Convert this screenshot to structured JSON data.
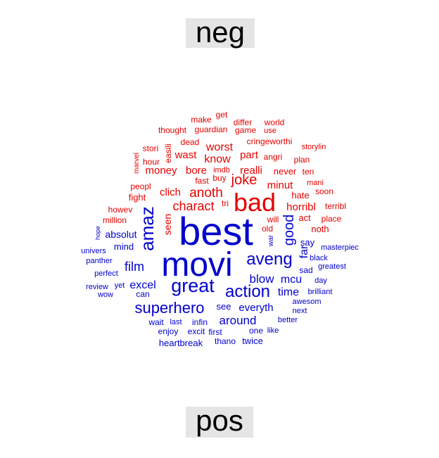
{
  "labels": {
    "neg": "neg",
    "pos": "pos"
  },
  "colors": {
    "neg": "#e60000",
    "pos": "#0000cc"
  },
  "words": [
    {
      "t": "best",
      "c": "pos"
    },
    {
      "t": "movi",
      "c": "pos"
    },
    {
      "t": "bad",
      "c": "neg"
    },
    {
      "t": "great",
      "c": "pos"
    },
    {
      "t": "action",
      "c": "pos"
    },
    {
      "t": "aveng",
      "c": "pos"
    },
    {
      "t": "amaz",
      "c": "pos"
    },
    {
      "t": "superhero",
      "c": "pos"
    },
    {
      "t": "joke",
      "c": "neg"
    },
    {
      "t": "anoth",
      "c": "neg"
    },
    {
      "t": "charact",
      "c": "neg"
    },
    {
      "t": "good",
      "c": "pos"
    },
    {
      "t": "film",
      "c": "pos"
    },
    {
      "t": "blow",
      "c": "pos"
    },
    {
      "t": "mcu",
      "c": "pos"
    },
    {
      "t": "around",
      "c": "pos"
    },
    {
      "t": "time",
      "c": "pos"
    },
    {
      "t": "everyth",
      "c": "pos"
    },
    {
      "t": "excel",
      "c": "pos"
    },
    {
      "t": "horribl",
      "c": "neg"
    },
    {
      "t": "worst",
      "c": "neg"
    },
    {
      "t": "know",
      "c": "neg"
    },
    {
      "t": "realli",
      "c": "neg"
    },
    {
      "t": "wast",
      "c": "neg"
    },
    {
      "t": "part",
      "c": "neg"
    },
    {
      "t": "money",
      "c": "neg"
    },
    {
      "t": "bore",
      "c": "neg"
    },
    {
      "t": "clich",
      "c": "neg"
    },
    {
      "t": "minut",
      "c": "neg"
    },
    {
      "t": "seen",
      "c": "neg"
    },
    {
      "t": "far",
      "c": "pos"
    },
    {
      "t": "absolut",
      "c": "pos"
    },
    {
      "t": "mind",
      "c": "pos"
    },
    {
      "t": "say",
      "c": "pos"
    },
    {
      "t": "see",
      "c": "pos"
    },
    {
      "t": "never",
      "c": "neg"
    },
    {
      "t": "hate",
      "c": "neg"
    },
    {
      "t": "will",
      "c": "neg"
    },
    {
      "t": "act",
      "c": "neg"
    },
    {
      "t": "place",
      "c": "neg"
    },
    {
      "t": "noth",
      "c": "neg"
    },
    {
      "t": "fight",
      "c": "neg"
    },
    {
      "t": "peopl",
      "c": "neg"
    },
    {
      "t": "million",
      "c": "neg"
    },
    {
      "t": "howev",
      "c": "neg"
    },
    {
      "t": "fast",
      "c": "neg"
    },
    {
      "t": "buy",
      "c": "neg"
    },
    {
      "t": "imdb",
      "c": "neg"
    },
    {
      "t": "angri",
      "c": "neg"
    },
    {
      "t": "ten",
      "c": "neg"
    },
    {
      "t": "soon",
      "c": "neg"
    },
    {
      "t": "terribl",
      "c": "neg"
    },
    {
      "t": "old",
      "c": "neg"
    },
    {
      "t": "tri",
      "c": "neg"
    },
    {
      "t": "hour",
      "c": "neg"
    },
    {
      "t": "stori",
      "c": "neg"
    },
    {
      "t": "easili",
      "c": "neg"
    },
    {
      "t": "marvel",
      "c": "neg"
    },
    {
      "t": "dead",
      "c": "neg"
    },
    {
      "t": "thought",
      "c": "neg"
    },
    {
      "t": "guardian",
      "c": "neg"
    },
    {
      "t": "game",
      "c": "neg"
    },
    {
      "t": "use",
      "c": "neg"
    },
    {
      "t": "make",
      "c": "neg"
    },
    {
      "t": "get",
      "c": "neg"
    },
    {
      "t": "differ",
      "c": "neg"
    },
    {
      "t": "world",
      "c": "neg"
    },
    {
      "t": "cringeworthi",
      "c": "neg"
    },
    {
      "t": "storylin",
      "c": "neg"
    },
    {
      "t": "plan",
      "c": "neg"
    },
    {
      "t": "mani",
      "c": "neg"
    },
    {
      "t": "war",
      "c": "pos"
    },
    {
      "t": "hope",
      "c": "pos"
    },
    {
      "t": "univers",
      "c": "pos"
    },
    {
      "t": "panther",
      "c": "pos"
    },
    {
      "t": "perfect",
      "c": "pos"
    },
    {
      "t": "review",
      "c": "pos"
    },
    {
      "t": "yet",
      "c": "pos"
    },
    {
      "t": "wow",
      "c": "pos"
    },
    {
      "t": "can",
      "c": "pos"
    },
    {
      "t": "wait",
      "c": "pos"
    },
    {
      "t": "last",
      "c": "pos"
    },
    {
      "t": "infin",
      "c": "pos"
    },
    {
      "t": "enjoy",
      "c": "pos"
    },
    {
      "t": "excit",
      "c": "pos"
    },
    {
      "t": "first",
      "c": "pos"
    },
    {
      "t": "heartbreak",
      "c": "pos"
    },
    {
      "t": "thano",
      "c": "pos"
    },
    {
      "t": "twice",
      "c": "pos"
    },
    {
      "t": "one",
      "c": "pos"
    },
    {
      "t": "like",
      "c": "pos"
    },
    {
      "t": "better",
      "c": "pos"
    },
    {
      "t": "next",
      "c": "pos"
    },
    {
      "t": "awesom",
      "c": "pos"
    },
    {
      "t": "brilliant",
      "c": "pos"
    },
    {
      "t": "day",
      "c": "pos"
    },
    {
      "t": "greatest",
      "c": "pos"
    },
    {
      "t": "black",
      "c": "pos"
    },
    {
      "t": "sad",
      "c": "pos"
    },
    {
      "t": "masterpiec",
      "c": "pos"
    }
  ]
}
